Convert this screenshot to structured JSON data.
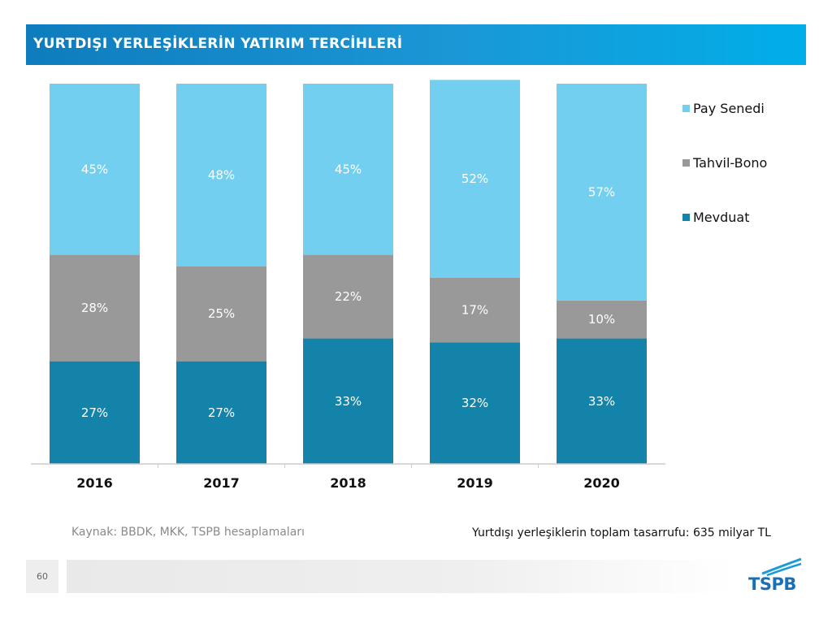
{
  "header": {
    "title": "YURTDIŞI YERLEŞİKLERİN YATIRIM TERCİHLERİ"
  },
  "colors": {
    "pay_senedi": "#72cff0",
    "tahvil_bono": "#999999",
    "mevduat": "#1483aa"
  },
  "chart_data": {
    "type": "bar",
    "stacked": true,
    "categories": [
      "2016",
      "2017",
      "2018",
      "2019",
      "2020"
    ],
    "series": [
      {
        "name": "Mevduat",
        "values": [
          27,
          27,
          33,
          32,
          33
        ],
        "labels": [
          "27%",
          "27%",
          "33%",
          "32%",
          "33%"
        ]
      },
      {
        "name": "Tahvil-Bono",
        "values": [
          28,
          25,
          22,
          17,
          10
        ],
        "labels": [
          "28%",
          "25%",
          "22%",
          "17%",
          "10%"
        ]
      },
      {
        "name": "Pay Senedi",
        "values": [
          45,
          48,
          45,
          52,
          57
        ],
        "labels": [
          "45%",
          "48%",
          "45%",
          "52%",
          "57%"
        ]
      }
    ],
    "legend": [
      "Pay Senedi",
      "Tahvil-Bono",
      "Mevduat"
    ],
    "legend_position": "right",
    "ylim": [
      0,
      100
    ],
    "grid": false,
    "xlabel": "",
    "ylabel": ""
  },
  "footer": {
    "source": "Kaynak: BBDK, MKK, TSPB hesaplamaları",
    "note": "Yurtdışı yerleşiklerin toplam tasarrufu: 635 milyar TL",
    "page_number": "60",
    "logo_text": "TSPB"
  }
}
